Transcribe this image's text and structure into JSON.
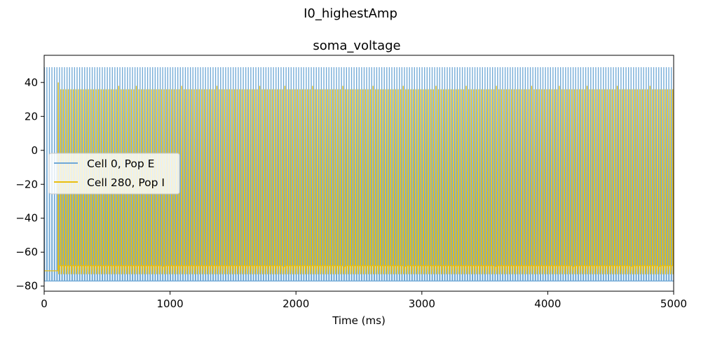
{
  "figure": {
    "suptitle": "I0_highestAmp"
  },
  "chart_data": {
    "type": "line",
    "title": "soma_voltage",
    "xlabel": "Time (ms)",
    "ylabel": "",
    "xlim": [
      0,
      5000
    ],
    "ylim": [
      -83,
      56
    ],
    "xticks": [
      0,
      1000,
      2000,
      3000,
      4000,
      5000
    ],
    "yticks": [
      -80,
      -60,
      -40,
      -20,
      0,
      20,
      40
    ],
    "grid": false,
    "legend": {
      "placement": "center-left"
    },
    "series": [
      {
        "name": "Cell 0, Pop E",
        "color": "#6fa8d6",
        "pattern": "regular tonic spiking",
        "spike_peak": 49,
        "trough": -77,
        "isi_ms": 20,
        "start_ms": 0
      },
      {
        "name": "Cell 280, Pop I",
        "color": "#e8be10",
        "pattern": "bursting spiking",
        "spike_peak": 36,
        "first_spike_peak": 40,
        "trough": -73,
        "resting": -71,
        "rest_after_spike": -68,
        "isi_ms": 20,
        "start_ms": 110,
        "stop_ms": 5000,
        "gap_spikes_ms": [
          560,
          740,
          930,
          1080,
          1300,
          1660,
          1890,
          2140,
          2370,
          2850,
          3120,
          3570,
          3780,
          4190,
          4400,
          4650,
          4870
        ],
        "tall_spikes_ms": [
          110,
          600,
          740,
          1100,
          1380,
          1720,
          1920,
          2140,
          2380,
          2620,
          2860,
          3120,
          3360,
          3600,
          3880,
          4100,
          4320,
          4560,
          4820
        ]
      }
    ]
  }
}
